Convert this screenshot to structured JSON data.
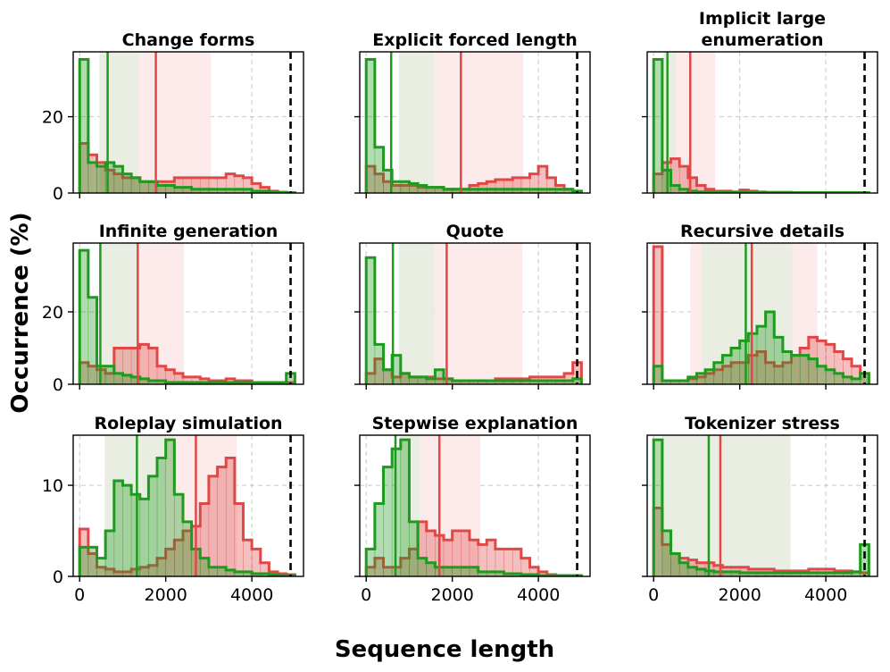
{
  "chart_data": {
    "type": "histogram_grid",
    "xlabel": "Sequence length",
    "ylabel": "Occurrence (%)",
    "xlim": [
      -150,
      5200
    ],
    "xticks": [
      0,
      2000,
      4000
    ],
    "xticklabels": [
      "0",
      "2000",
      "4000"
    ],
    "bin_width": 200,
    "bin_starts": [
      0,
      200,
      400,
      600,
      800,
      1000,
      1200,
      1400,
      1600,
      1800,
      2000,
      2200,
      2400,
      2600,
      2800,
      3000,
      3200,
      3400,
      3600,
      3800,
      4000,
      4200,
      4400,
      4600,
      4800
    ],
    "max_length_line": 4900,
    "series_colors": {
      "red": "#e04848",
      "green": "#1e9a1e"
    },
    "band_colors": {
      "red": "#fde9ea",
      "green": "#e9ede0"
    },
    "rows": [
      {
        "ylim": [
          0,
          37
        ],
        "yticks": [
          0,
          20
        ],
        "yticklabels": [
          "0",
          "20"
        ]
      },
      {
        "ylim": [
          0,
          39
        ],
        "yticks": [
          0,
          20
        ],
        "yticklabels": [
          "0",
          "20"
        ]
      },
      {
        "ylim": [
          0,
          15.5
        ],
        "yticks": [
          0,
          10
        ],
        "yticklabels": [
          "0",
          "10"
        ]
      }
    ],
    "panels": [
      {
        "title": "Change forms",
        "red": [
          13,
          10,
          8,
          6,
          5,
          4,
          4,
          3,
          3,
          3,
          3,
          4,
          4,
          4,
          4,
          4,
          4,
          5,
          4.5,
          4,
          2.5,
          1.5,
          0.5,
          0.2,
          0.1
        ],
        "green": [
          35,
          8,
          7,
          8,
          7,
          5,
          4,
          3,
          3,
          2,
          2,
          1.5,
          1.5,
          1,
          1,
          1,
          1,
          1,
          1,
          1,
          0.5,
          0.5,
          0.3,
          0.2,
          0.1
        ],
        "red_median": 1770,
        "red_band": [
          1380,
          3050
        ],
        "green_median": 650,
        "green_band": [
          460,
          1380
        ]
      },
      {
        "title": "Explicit forced length",
        "red": [
          7,
          5,
          3,
          2,
          2,
          2,
          1.5,
          1.5,
          1.5,
          1,
          1,
          1,
          2,
          2.5,
          3,
          3.5,
          3.5,
          4,
          4,
          5,
          7,
          4,
          2,
          1,
          0.5
        ],
        "green": [
          35,
          12,
          6,
          3,
          3,
          2.5,
          2,
          1.5,
          1.5,
          1,
          1,
          1,
          1,
          1,
          1,
          1,
          1,
          1,
          1,
          1,
          1,
          1,
          1,
          1,
          0.5
        ],
        "red_median": 2200,
        "red_band": [
          1580,
          3650
        ],
        "green_median": 580,
        "green_band": [
          760,
          1580
        ]
      },
      {
        "title": "Implicit large enumeration",
        "title_lines": [
          "Implicit large",
          "enumeration"
        ],
        "red": [
          5,
          8,
          9,
          7,
          4,
          2,
          1,
          0.5,
          0.5,
          0.3,
          0.8,
          0.5,
          0.3,
          0.2,
          0.2,
          0.2,
          0.1,
          0.1,
          0.1,
          0.1,
          0.1,
          0.1,
          0.1,
          0.1,
          0.1
        ],
        "green": [
          35,
          6,
          2,
          1,
          0.5,
          0.3,
          0.3,
          0.2,
          0.2,
          0.2,
          0.2,
          0.2,
          0.1,
          0.1,
          0.1,
          0.1,
          0.1,
          0.1,
          0.1,
          0.1,
          0.1,
          0.1,
          0.1,
          0.1,
          0.1
        ],
        "red_median": 850,
        "red_band": [
          530,
          1430
        ],
        "green_median": 320,
        "green_band": [
          230,
          530
        ]
      },
      {
        "title": "Infinite generation",
        "red": [
          6,
          5,
          4,
          3,
          10,
          10,
          10,
          11,
          10,
          5,
          4,
          3,
          2,
          2,
          1.5,
          1,
          1,
          1.5,
          1,
          1,
          0.5,
          0.5,
          0.5,
          0.5,
          0.5
        ],
        "green": [
          37,
          24,
          5,
          5,
          3,
          2.5,
          2,
          1.5,
          1,
          1,
          0.5,
          0.5,
          0.5,
          0.5,
          0.5,
          0.5,
          0.5,
          0.5,
          0.5,
          0.5,
          0.5,
          0.5,
          0.5,
          0.5,
          3
        ],
        "red_median": 1350,
        "red_band": [
          1350,
          2420
        ],
        "green_median": 480,
        "green_band": [
          500,
          1350
        ]
      },
      {
        "title": "Quote",
        "red": [
          3,
          7,
          4,
          2,
          3,
          2,
          2,
          2,
          1.5,
          1.5,
          1,
          1,
          1,
          1,
          1,
          1.5,
          1.5,
          1.5,
          1.5,
          2,
          2,
          2,
          2,
          3,
          6
        ],
        "green": [
          35,
          11,
          4,
          8,
          3,
          2,
          2,
          1.5,
          4,
          1.5,
          1,
          1,
          1,
          1,
          1,
          1,
          1,
          1,
          1,
          1,
          1,
          1,
          1,
          1,
          1.5
        ],
        "red_median": 1870,
        "red_band": [
          1600,
          3630
        ],
        "green_median": 620,
        "green_band": [
          760,
          1600
        ]
      },
      {
        "title": "Recursive details",
        "red": [
          38,
          1,
          1,
          1,
          1.5,
          2,
          3,
          4,
          5,
          6,
          6,
          8,
          9,
          6,
          5,
          6,
          8,
          10,
          13,
          12,
          11,
          9,
          7,
          5,
          3
        ],
        "green": [
          5,
          1,
          1,
          1,
          2,
          3,
          4,
          6,
          8,
          10,
          12,
          14,
          16,
          20,
          13,
          9,
          8,
          8,
          7,
          5,
          4,
          3,
          2,
          1.5,
          3
        ],
        "red_median": 2280,
        "red_band": [
          850,
          3800
        ],
        "green_median": 2140,
        "green_band": [
          1120,
          3220
        ]
      },
      {
        "title": "Roleplay simulation",
        "red": [
          5.2,
          2.5,
          1.0,
          0.8,
          0.5,
          0.5,
          0.8,
          1.0,
          1.2,
          2.0,
          3.0,
          4.0,
          5.0,
          5.5,
          8.0,
          11.0,
          12.0,
          13.0,
          8.0,
          4.0,
          3.0,
          1.5,
          0.5,
          0.3,
          0.2
        ],
        "green": [
          3.2,
          3.2,
          2.0,
          5.0,
          10.5,
          10.0,
          9.0,
          8.5,
          11.0,
          13.0,
          15.0,
          9.0,
          6.0,
          3.0,
          2.0,
          1.0,
          1.0,
          0.7,
          0.5,
          0.5,
          0.3,
          0.3,
          0.2,
          0.1,
          0.1
        ],
        "red_median": 2700,
        "red_band": [
          2000,
          3650
        ],
        "green_median": 1330,
        "green_band": [
          580,
          2000
        ]
      },
      {
        "title": "Stepwise explanation",
        "red": [
          1,
          2,
          1,
          1,
          2,
          3,
          6,
          5,
          4.5,
          4,
          5,
          5,
          4,
          3.5,
          4,
          3,
          3,
          3,
          2,
          1,
          0.5,
          0.2,
          0.1,
          0.1,
          0.1
        ],
        "green": [
          3,
          8,
          12,
          14,
          15,
          6,
          2,
          1.5,
          1,
          1,
          1,
          1,
          1,
          0.5,
          0.5,
          0.5,
          0.3,
          0.3,
          0.2,
          0.2,
          0.1,
          0.1,
          0.1,
          0.1,
          0.1
        ],
        "red_median": 1700,
        "red_band": [
          1250,
          2650
        ],
        "green_median": 680,
        "green_band": [
          780,
          1250
        ]
      },
      {
        "title": "Tokenizer stress",
        "red": [
          7.5,
          3.5,
          2.5,
          2.0,
          1.8,
          1.5,
          1.5,
          1.2,
          1.0,
          1.0,
          1.0,
          0.8,
          0.8,
          0.8,
          0.6,
          0.6,
          0.6,
          0.6,
          0.8,
          0.8,
          0.8,
          0.6,
          0.6,
          0.5,
          0.4
        ],
        "green": [
          15,
          5,
          2.5,
          1.5,
          1.0,
          0.8,
          0.6,
          0.5,
          0.5,
          0.5,
          0.4,
          0.4,
          0.4,
          0.4,
          0.4,
          0.4,
          0.4,
          0.4,
          0.4,
          0.4,
          0.4,
          0.4,
          0.4,
          0.5,
          3.5
        ],
        "red_median": 1550,
        "red_band": [
          200,
          3180
        ],
        "green_median": 1280,
        "green_band": [
          200,
          3180
        ]
      }
    ]
  }
}
